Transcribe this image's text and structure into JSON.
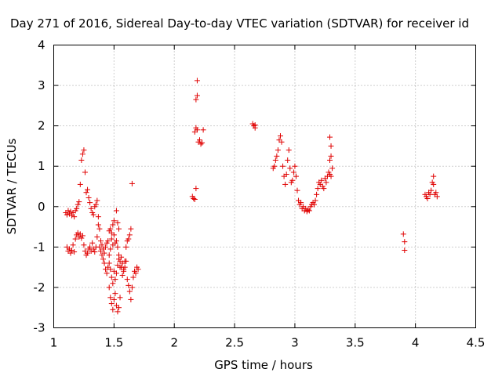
{
  "chart_data": {
    "type": "scatter",
    "title": "Day 271 of 2016, Sidereal Day-to-day VTEC variation (SDTVAR) for receiver id",
    "xlabel": "GPS time / hours",
    "ylabel": "SDTVAR / TECUs",
    "xlim": [
      1,
      4.5
    ],
    "ylim": [
      -3,
      4
    ],
    "xticks": [
      1,
      1.5,
      2,
      2.5,
      3,
      3.5,
      4,
      4.5
    ],
    "yticks": [
      -3,
      -2,
      -1,
      0,
      1,
      2,
      3,
      4
    ],
    "xtick_labels": [
      "1",
      "1.5",
      "2",
      "2.5",
      "3",
      "3.5",
      "4",
      "4.5"
    ],
    "ytick_labels": [
      "-3",
      "-2",
      "-1",
      "0",
      "1",
      "2",
      "3",
      "4"
    ],
    "grid": true,
    "marker": "+",
    "series": [
      {
        "name": "SDTVAR",
        "color": "#e00000",
        "points": [
          [
            1.1,
            -0.15
          ],
          [
            1.11,
            -0.2
          ],
          [
            1.12,
            -0.1
          ],
          [
            1.13,
            -0.18
          ],
          [
            1.14,
            -0.12
          ],
          [
            1.15,
            -0.22
          ],
          [
            1.16,
            -0.15
          ],
          [
            1.17,
            -0.25
          ],
          [
            1.18,
            -0.1
          ],
          [
            1.19,
            -0.05
          ],
          [
            1.2,
            0.05
          ],
          [
            1.21,
            0.12
          ],
          [
            1.22,
            0.55
          ],
          [
            1.23,
            1.15
          ],
          [
            1.24,
            1.3
          ],
          [
            1.25,
            1.4
          ],
          [
            1.26,
            0.85
          ],
          [
            1.27,
            0.35
          ],
          [
            1.28,
            0.42
          ],
          [
            1.29,
            0.22
          ],
          [
            1.3,
            0.1
          ],
          [
            1.31,
            -0.05
          ],
          [
            1.32,
            -0.15
          ],
          [
            1.33,
            -0.2
          ],
          [
            1.34,
            0.0
          ],
          [
            1.35,
            0.05
          ],
          [
            1.36,
            0.15
          ],
          [
            1.37,
            -0.25
          ],
          [
            1.11,
            -1.0
          ],
          [
            1.12,
            -1.1
          ],
          [
            1.13,
            -1.05
          ],
          [
            1.14,
            -1.15
          ],
          [
            1.15,
            -1.08
          ],
          [
            1.16,
            -0.95
          ],
          [
            1.17,
            -1.12
          ],
          [
            1.18,
            -0.8
          ],
          [
            1.19,
            -0.7
          ],
          [
            1.2,
            -0.65
          ],
          [
            1.21,
            -0.75
          ],
          [
            1.22,
            -0.68
          ],
          [
            1.23,
            -0.78
          ],
          [
            1.24,
            -0.72
          ],
          [
            1.25,
            -0.95
          ],
          [
            1.26,
            -1.1
          ],
          [
            1.27,
            -1.2
          ],
          [
            1.28,
            -1.15
          ],
          [
            1.29,
            -1.05
          ],
          [
            1.3,
            -1.0
          ],
          [
            1.31,
            -1.1
          ],
          [
            1.32,
            -0.9
          ],
          [
            1.33,
            -1.05
          ],
          [
            1.34,
            -1.12
          ],
          [
            1.35,
            -1.0
          ],
          [
            1.36,
            -0.75
          ],
          [
            1.37,
            -0.45
          ],
          [
            1.38,
            -0.55
          ],
          [
            1.39,
            -0.85
          ],
          [
            1.4,
            -1.2
          ],
          [
            1.41,
            -1.3
          ],
          [
            1.42,
            -1.4
          ],
          [
            1.43,
            -1.55
          ],
          [
            1.44,
            -1.65
          ],
          [
            1.45,
            -1.5
          ],
          [
            1.46,
            -1.2
          ],
          [
            1.47,
            -1.05
          ],
          [
            1.48,
            -0.65
          ],
          [
            1.49,
            -0.45
          ],
          [
            1.5,
            -0.35
          ],
          [
            1.38,
            -1.0
          ],
          [
            1.39,
            -1.1
          ],
          [
            1.4,
            -0.95
          ],
          [
            1.41,
            -1.05
          ],
          [
            1.42,
            -1.15
          ],
          [
            1.43,
            -1.0
          ],
          [
            1.44,
            -0.9
          ],
          [
            1.45,
            -0.85
          ],
          [
            1.46,
            -0.6
          ],
          [
            1.47,
            -0.55
          ],
          [
            1.48,
            -0.8
          ],
          [
            1.49,
            -0.95
          ],
          [
            1.5,
            -0.7
          ],
          [
            1.51,
            -0.9
          ],
          [
            1.52,
            -0.85
          ],
          [
            1.53,
            -1.0
          ],
          [
            1.54,
            -1.2
          ],
          [
            1.55,
            -1.35
          ],
          [
            1.56,
            -1.5
          ],
          [
            1.57,
            -1.7
          ],
          [
            1.58,
            -1.55
          ],
          [
            1.59,
            -1.35
          ],
          [
            1.6,
            -1.0
          ],
          [
            1.61,
            -0.85
          ],
          [
            1.62,
            -0.8
          ],
          [
            1.63,
            -0.7
          ],
          [
            1.64,
            -0.55
          ],
          [
            1.65,
            0.57
          ],
          [
            1.46,
            -2.0
          ],
          [
            1.47,
            -2.25
          ],
          [
            1.48,
            -2.4
          ],
          [
            1.49,
            -2.55
          ],
          [
            1.5,
            -2.3
          ],
          [
            1.51,
            -2.15
          ],
          [
            1.52,
            -2.45
          ],
          [
            1.53,
            -2.6
          ],
          [
            1.54,
            -2.5
          ],
          [
            1.55,
            -2.25
          ],
          [
            1.46,
            -1.4
          ],
          [
            1.47,
            -1.55
          ],
          [
            1.48,
            -1.75
          ],
          [
            1.49,
            -1.9
          ],
          [
            1.5,
            -1.6
          ],
          [
            1.51,
            -1.8
          ],
          [
            1.52,
            -1.65
          ],
          [
            1.53,
            -1.45
          ],
          [
            1.54,
            -1.3
          ],
          [
            1.55,
            -1.5
          ],
          [
            1.56,
            -1.25
          ],
          [
            1.57,
            -1.4
          ],
          [
            1.58,
            -1.6
          ],
          [
            1.59,
            -1.5
          ],
          [
            1.6,
            -1.35
          ],
          [
            1.61,
            -1.8
          ],
          [
            1.62,
            -1.95
          ],
          [
            1.63,
            -2.1
          ],
          [
            1.64,
            -2.3
          ],
          [
            1.65,
            -2.0
          ],
          [
            1.66,
            -1.75
          ],
          [
            1.67,
            -1.6
          ],
          [
            1.68,
            -1.65
          ],
          [
            1.69,
            -1.5
          ],
          [
            1.7,
            -1.55
          ],
          [
            1.52,
            -0.1
          ],
          [
            1.53,
            -0.4
          ],
          [
            1.54,
            -0.55
          ],
          [
            2.15,
            0.25
          ],
          [
            2.16,
            0.2
          ],
          [
            2.17,
            0.18
          ],
          [
            2.18,
            0.45
          ],
          [
            2.17,
            1.85
          ],
          [
            2.18,
            1.95
          ],
          [
            2.19,
            1.9
          ],
          [
            2.2,
            1.6
          ],
          [
            2.21,
            1.65
          ],
          [
            2.22,
            1.55
          ],
          [
            2.23,
            1.58
          ],
          [
            2.24,
            1.9
          ],
          [
            2.18,
            2.65
          ],
          [
            2.19,
            2.75
          ],
          [
            2.19,
            3.12
          ],
          [
            2.65,
            2.05
          ],
          [
            2.66,
            2.0
          ],
          [
            2.67,
            1.95
          ],
          [
            2.67,
            2.02
          ],
          [
            2.82,
            0.95
          ],
          [
            2.83,
            1.0
          ],
          [
            2.84,
            1.15
          ],
          [
            2.85,
            1.25
          ],
          [
            2.86,
            1.4
          ],
          [
            2.87,
            1.65
          ],
          [
            2.88,
            1.75
          ],
          [
            2.89,
            1.6
          ],
          [
            2.9,
            1.0
          ],
          [
            2.91,
            0.75
          ],
          [
            2.92,
            0.55
          ],
          [
            2.93,
            0.8
          ],
          [
            2.94,
            1.15
          ],
          [
            2.95,
            1.4
          ],
          [
            2.96,
            0.95
          ],
          [
            2.97,
            0.6
          ],
          [
            2.98,
            0.65
          ],
          [
            2.99,
            0.85
          ],
          [
            3.0,
            1.0
          ],
          [
            3.01,
            0.75
          ],
          [
            3.02,
            0.4
          ],
          [
            3.03,
            0.15
          ],
          [
            3.04,
            0.05
          ],
          [
            3.05,
            0.1
          ],
          [
            3.06,
            -0.05
          ],
          [
            3.07,
            0.0
          ],
          [
            3.08,
            -0.1
          ],
          [
            3.09,
            -0.05
          ],
          [
            3.1,
            -0.12
          ],
          [
            3.11,
            -0.08
          ],
          [
            3.12,
            -0.1
          ],
          [
            3.13,
            0.0
          ],
          [
            3.14,
            0.05
          ],
          [
            3.15,
            0.1
          ],
          [
            3.16,
            0.05
          ],
          [
            3.17,
            0.15
          ],
          [
            3.18,
            0.3
          ],
          [
            3.19,
            0.45
          ],
          [
            3.2,
            0.6
          ],
          [
            3.21,
            0.55
          ],
          [
            3.22,
            0.65
          ],
          [
            3.23,
            0.5
          ],
          [
            3.24,
            0.45
          ],
          [
            3.25,
            0.7
          ],
          [
            3.26,
            0.6
          ],
          [
            3.27,
            0.75
          ],
          [
            3.28,
            0.85
          ],
          [
            3.29,
            0.8
          ],
          [
            3.3,
            0.75
          ],
          [
            3.31,
            0.95
          ],
          [
            3.29,
            1.15
          ],
          [
            3.3,
            1.25
          ],
          [
            3.3,
            1.5
          ],
          [
            3.29,
            1.72
          ],
          [
            3.9,
            -0.68
          ],
          [
            3.91,
            -0.87
          ],
          [
            3.91,
            -1.08
          ],
          [
            4.08,
            0.3
          ],
          [
            4.09,
            0.25
          ],
          [
            4.1,
            0.2
          ],
          [
            4.11,
            0.35
          ],
          [
            4.12,
            0.3
          ],
          [
            4.13,
            0.4
          ],
          [
            4.14,
            0.6
          ],
          [
            4.15,
            0.75
          ],
          [
            4.15,
            0.55
          ],
          [
            4.16,
            0.3
          ],
          [
            4.17,
            0.35
          ],
          [
            4.18,
            0.25
          ]
        ]
      }
    ]
  }
}
